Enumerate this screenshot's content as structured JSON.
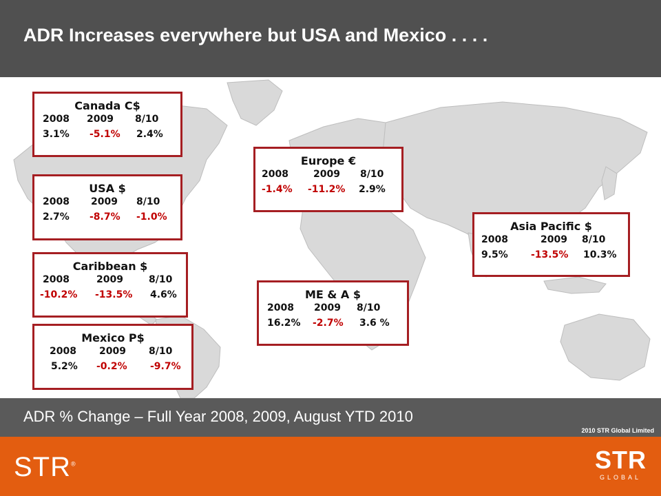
{
  "title": "ADR Increases everywhere but USA and Mexico . . . .",
  "caption": "ADR % Change – Full Year 2008, 2009, August YTD 2010",
  "copyright": "2010 STR Global Limited",
  "logos": {
    "left": "STR",
    "right_main": "STR",
    "right_sub": "GLOBAL"
  },
  "colors": {
    "title_bar": "#505050",
    "caption_bar": "#5a5a5a",
    "footer": "#e35d10",
    "box_border": "#a51e22",
    "negative": "#c00000"
  },
  "regions": {
    "canada": {
      "name": "Canada C$",
      "years": [
        "2008",
        "2009",
        "8/10"
      ],
      "values": [
        "3.1%",
        "-5.1%",
        "2.4%"
      ]
    },
    "usa": {
      "name": "USA  $",
      "years": [
        "2008",
        "2009",
        "8/10"
      ],
      "values": [
        "2.7%",
        "-8.7%",
        "-1.0%"
      ]
    },
    "caribbean": {
      "name": "Caribbean  $",
      "years": [
        "2008",
        "2009",
        "8/10"
      ],
      "values": [
        "-10.2%",
        "-13.5%",
        "4.6%"
      ]
    },
    "mexico": {
      "name": "Mexico  P$",
      "years": [
        "2008",
        "2009",
        "8/10"
      ],
      "values": [
        "5.2%",
        "-0.2%",
        "-9.7%"
      ]
    },
    "europe": {
      "name": "Europe €",
      "years": [
        "2008",
        "2009",
        "8/10"
      ],
      "values": [
        "-1.4%",
        "-11.2%",
        "2.9%"
      ]
    },
    "mea": {
      "name": "ME & A $",
      "years": [
        "2008",
        "2009",
        "8/10"
      ],
      "values": [
        "16.2%",
        "-2.7%",
        "3.6 %"
      ]
    },
    "asia": {
      "name": "Asia Pacific $",
      "years": [
        "2008",
        "2009",
        "8/10"
      ],
      "values": [
        "9.5%",
        "-13.5%",
        "10.3%"
      ]
    }
  }
}
